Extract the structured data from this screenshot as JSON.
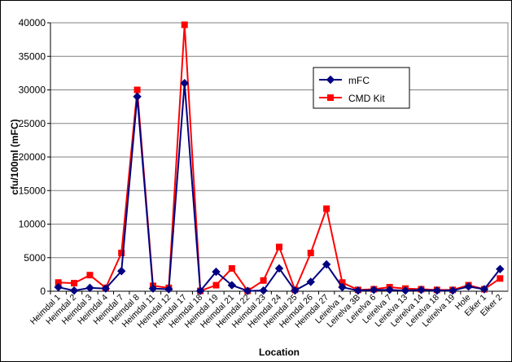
{
  "chart_data": {
    "type": "line",
    "x_label": "Location",
    "y_label": "cfu/100ml (mFC)",
    "categories": [
      "Heimdal 1",
      "Heimdal 2",
      "Heimdal 3",
      "Heimdal 4",
      "Heimdal 7",
      "Heimdal 8",
      "Heimdal 11",
      "Heimdal 12",
      "Heimdal 17",
      "Heimdal 18",
      "Heimdal 19",
      "Heimdal 21",
      "Heimdal 22",
      "Heimdal 23",
      "Heimdal 24",
      "Heimdal 25",
      "Heimdal 26",
      "Heimdal 27",
      "Leirelva 1",
      "Leirelva 3B",
      "Leirelva 6",
      "Leirelva 7",
      "Leirelva 13",
      "Leirelva 14",
      "Leirelva 18",
      "Leirelva 19",
      "Hole",
      "Eiker 1",
      "Eiker 2"
    ],
    "series": [
      {
        "name": "mFC",
        "color": "#000080",
        "marker": "diamond",
        "values": [
          600,
          100,
          500,
          400,
          3000,
          29000,
          400,
          300,
          31000,
          50,
          2900,
          900,
          50,
          100,
          3400,
          100,
          1400,
          4000,
          600,
          100,
          200,
          200,
          100,
          200,
          100,
          100,
          700,
          300,
          3300
        ]
      },
      {
        "name": "CMD Kit",
        "color": "#ff0000",
        "marker": "square",
        "values": [
          1300,
          1200,
          2400,
          500,
          5700,
          30000,
          800,
          500,
          39700,
          50,
          900,
          3400,
          50,
          1600,
          6600,
          200,
          5700,
          12300,
          1300,
          200,
          300,
          600,
          400,
          300,
          200,
          200,
          900,
          300,
          1900
        ]
      }
    ],
    "ylim": [
      0,
      40000
    ],
    "yticks": [
      0,
      5000,
      10000,
      15000,
      20000,
      25000,
      30000,
      35000,
      40000
    ],
    "grid": true
  }
}
